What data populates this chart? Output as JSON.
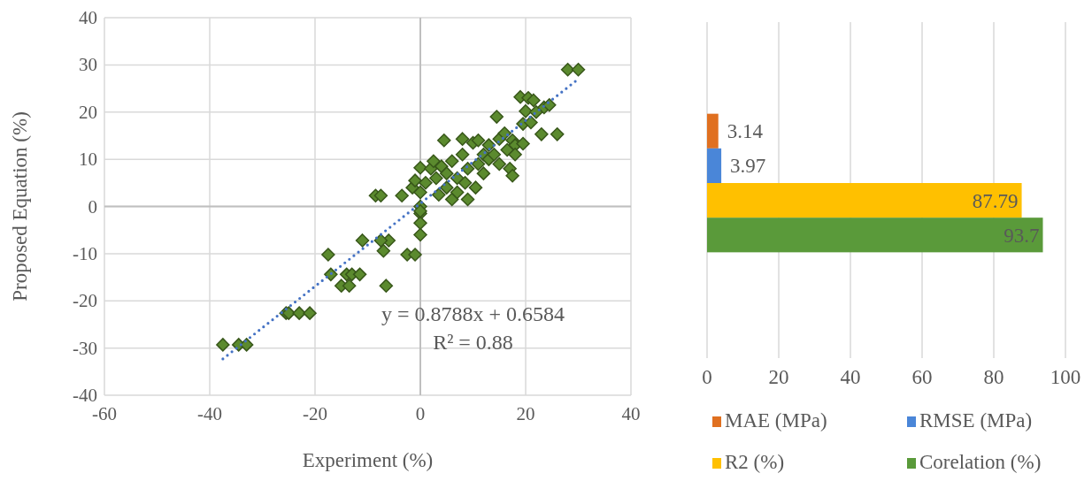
{
  "chart_data": [
    {
      "type": "scatter",
      "xlabel": "Experiment (%)",
      "ylabel": "Proposed Equation (%)",
      "xlim": [
        -60,
        40
      ],
      "ylim": [
        -40,
        40
      ],
      "xticks": [
        -60,
        -40,
        -20,
        0,
        20,
        40
      ],
      "yticks": [
        -40,
        -30,
        -20,
        -10,
        0,
        10,
        20,
        30,
        40
      ],
      "grid": true,
      "annotations": [
        "y = 0.8788x + 0.6584",
        "R² = 0.88"
      ],
      "series": [
        {
          "type": "scatter",
          "color": "#5b8a2e",
          "marker": "diamond",
          "x": [
            -37.5,
            -34.5,
            -33,
            -25.5,
            -25,
            -23,
            -21,
            -17.5,
            -17,
            -15,
            -14,
            -13.5,
            -13,
            -11.5,
            -11,
            -8.5,
            -7.5,
            -7,
            -6.5,
            -6,
            -7.5,
            -3.5,
            -2.5,
            -1,
            -1.5,
            -1,
            0,
            0,
            0,
            0,
            0,
            0,
            0,
            1,
            2,
            2.5,
            3,
            3.5,
            4,
            4.5,
            5,
            5,
            6,
            6,
            7,
            7,
            8,
            8,
            8.5,
            9,
            9,
            10,
            10.5,
            11,
            11,
            12,
            12,
            13,
            13,
            14,
            14.5,
            15,
            15,
            16,
            16.5,
            17,
            17.5,
            17.5,
            18,
            18,
            19,
            19.5,
            19.5,
            20,
            20.5,
            21,
            21.5,
            22,
            23,
            23.5,
            24.5,
            26,
            28,
            30
          ],
          "values": [
            -29.3,
            -29.3,
            -29.3,
            -22.6,
            -22.6,
            -22.6,
            -22.6,
            -10.2,
            -14.4,
            -16.8,
            -14.4,
            -16.8,
            -14.4,
            -14.4,
            -7.2,
            2.3,
            2.3,
            -9.4,
            -16.8,
            -7.2,
            -7.2,
            2.3,
            -10.2,
            -10.2,
            4,
            5.5,
            8.2,
            3,
            0,
            -1.5,
            -3.5,
            -6,
            -1,
            5,
            8,
            9.6,
            6,
            2.5,
            8.5,
            14,
            7,
            4,
            9.6,
            1.5,
            3,
            6,
            14.3,
            11,
            5,
            8,
            1.5,
            13.5,
            4,
            14,
            9,
            7,
            11,
            13,
            10,
            11,
            19,
            14.3,
            9,
            15.5,
            12,
            8,
            6.5,
            14,
            13,
            11,
            23.2,
            17.5,
            13.3,
            20.2,
            23,
            17.8,
            22.5,
            20,
            15.3,
            21,
            21.5,
            15.3,
            29,
            29
          ]
        },
        {
          "type": "line",
          "color": "#4472c4",
          "line_style": "dotted",
          "x": [
            -37.5,
            30
          ],
          "values": [
            -32.3,
            27.0
          ]
        }
      ]
    },
    {
      "type": "bar",
      "orientation": "horizontal",
      "categories": [
        null
      ],
      "xlim": [
        0,
        100
      ],
      "xticks": [
        0,
        20,
        40,
        60,
        80,
        100
      ],
      "grid": "x",
      "legend": "bottom",
      "data_labels": true,
      "series": [
        {
          "name": "MAE (MPa)",
          "color": "#e07020",
          "values": [
            3.14
          ]
        },
        {
          "name": "RMSE (MPa)",
          "color": "#4a86d8",
          "values": [
            3.97
          ]
        },
        {
          "name": "R2 (%)",
          "color": "#ffc000",
          "values": [
            87.79
          ]
        },
        {
          "name": "Corelation (%)",
          "color": "#5a9a3a",
          "values": [
            93.7
          ]
        }
      ]
    }
  ]
}
